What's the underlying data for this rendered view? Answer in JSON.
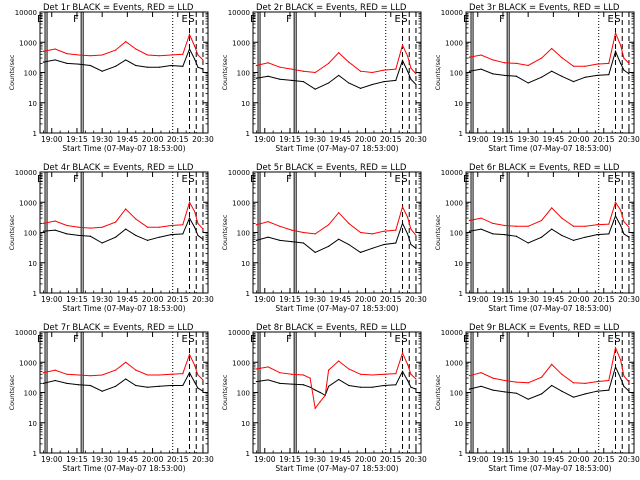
{
  "figure": {
    "xlabel": "Start Time (07-May-07 18:53:00)",
    "ylabel": "Counts/sec",
    "x_tick_labels": [
      "19:00",
      "19:15",
      "19:30",
      "19:45",
      "20:00",
      "20:15",
      "20:30"
    ],
    "y_tick_labels": [
      "1",
      "10",
      "100",
      "1000",
      "10000"
    ],
    "colors": {
      "events": "#000000",
      "lld": "#ff0000",
      "axes": "#000000"
    }
  },
  "chart_data": [
    {
      "type": "line",
      "title": "Det 1r BLACK = Events, RED = LLD",
      "y_scale": "log",
      "ylim": [
        1,
        10000
      ],
      "x": [
        "18:55",
        "19:02",
        "19:09",
        "19:16",
        "19:23",
        "19:30",
        "19:38",
        "19:44",
        "19:50",
        "19:57",
        "20:04",
        "20:11",
        "20:18",
        "20:22",
        "20:25",
        "20:27",
        "20:30"
      ],
      "series": [
        {
          "name": "Events",
          "values": [
            220,
            260,
            200,
            190,
            170,
            110,
            160,
            260,
            170,
            150,
            150,
            170,
            160,
            600,
            280,
            150,
            130
          ]
        },
        {
          "name": "LLD",
          "values": [
            500,
            600,
            420,
            380,
            360,
            380,
            550,
            1050,
            600,
            380,
            360,
            380,
            400,
            1800,
            750,
            380,
            260
          ]
        }
      ],
      "markers": [
        {
          "label": "E",
          "style": "solid"
        },
        {
          "label": "F",
          "style": "solid"
        },
        {
          "label": "",
          "style": "dotted"
        },
        {
          "label": "E",
          "style": "dashed"
        },
        {
          "label": "S",
          "style": "dashed"
        },
        {
          "label": "",
          "style": "dashed"
        }
      ]
    },
    {
      "type": "line",
      "title": "Det 2r BLACK = Events, RED = LLD",
      "y_scale": "log",
      "ylim": [
        1,
        10000
      ],
      "x": [
        "18:55",
        "19:02",
        "19:09",
        "19:16",
        "19:23",
        "19:30",
        "19:38",
        "19:44",
        "19:50",
        "19:57",
        "20:04",
        "20:11",
        "20:18",
        "20:22",
        "20:25",
        "20:27",
        "20:30"
      ],
      "series": [
        {
          "name": "Events",
          "values": [
            65,
            75,
            60,
            55,
            50,
            28,
            45,
            80,
            45,
            30,
            40,
            50,
            55,
            250,
            110,
            60,
            40
          ]
        },
        {
          "name": "LLD",
          "values": [
            170,
            210,
            150,
            130,
            110,
            100,
            200,
            450,
            220,
            110,
            100,
            120,
            130,
            800,
            350,
            140,
            90
          ]
        }
      ],
      "markers": [
        {
          "label": "E",
          "style": "solid"
        },
        {
          "label": "F",
          "style": "solid"
        },
        {
          "label": "",
          "style": "dotted"
        },
        {
          "label": "E",
          "style": "dashed"
        },
        {
          "label": "S",
          "style": "dashed"
        },
        {
          "label": "",
          "style": "dashed"
        }
      ]
    },
    {
      "type": "line",
      "title": "Det 3r BLACK = Events, RED = LLD",
      "y_scale": "log",
      "ylim": [
        1,
        10000
      ],
      "x": [
        "18:55",
        "19:02",
        "19:09",
        "19:16",
        "19:23",
        "19:30",
        "19:38",
        "19:44",
        "19:50",
        "19:57",
        "20:04",
        "20:11",
        "20:18",
        "20:22",
        "20:25",
        "20:27",
        "20:30"
      ],
      "series": [
        {
          "name": "Events",
          "values": [
            110,
            130,
            90,
            80,
            75,
            45,
            70,
            110,
            75,
            50,
            70,
            80,
            85,
            500,
            200,
            120,
            90
          ]
        },
        {
          "name": "LLD",
          "values": [
            320,
            380,
            260,
            210,
            200,
            170,
            300,
            620,
            310,
            160,
            160,
            190,
            200,
            2000,
            800,
            300,
            200
          ]
        }
      ],
      "markers": [
        {
          "label": "E",
          "style": "solid"
        },
        {
          "label": "F",
          "style": "solid"
        },
        {
          "label": "",
          "style": "dotted"
        },
        {
          "label": "E",
          "style": "dashed"
        },
        {
          "label": "S",
          "style": "dashed"
        },
        {
          "label": "",
          "style": "dashed"
        }
      ]
    },
    {
      "type": "line",
      "title": "Det 4r BLACK = Events, RED = LLD",
      "y_scale": "log",
      "ylim": [
        1,
        10000
      ],
      "x": [
        "18:55",
        "19:02",
        "19:09",
        "19:16",
        "19:23",
        "19:30",
        "19:38",
        "19:44",
        "19:50",
        "19:57",
        "20:04",
        "20:11",
        "20:18",
        "20:22",
        "20:25",
        "20:27",
        "20:30"
      ],
      "series": [
        {
          "name": "Events",
          "values": [
            110,
            120,
            90,
            80,
            75,
            45,
            70,
            130,
            80,
            55,
            70,
            85,
            90,
            300,
            150,
            80,
            60
          ]
        },
        {
          "name": "LLD",
          "values": [
            200,
            240,
            170,
            150,
            140,
            150,
            220,
            600,
            280,
            150,
            150,
            170,
            180,
            1000,
            500,
            200,
            130
          ]
        }
      ],
      "markers": [
        {
          "label": "E",
          "style": "solid"
        },
        {
          "label": "F",
          "style": "solid"
        },
        {
          "label": "",
          "style": "dotted"
        },
        {
          "label": "E",
          "style": "dashed"
        },
        {
          "label": "S",
          "style": "dashed"
        },
        {
          "label": "",
          "style": "dashed"
        }
      ]
    },
    {
      "type": "line",
      "title": "Det 5r BLACK = Events, RED = LLD",
      "y_scale": "log",
      "ylim": [
        1,
        10000
      ],
      "x": [
        "18:55",
        "19:02",
        "19:09",
        "19:16",
        "19:23",
        "19:30",
        "19:38",
        "19:44",
        "19:50",
        "19:57",
        "20:04",
        "20:11",
        "20:18",
        "20:22",
        "20:25",
        "20:27",
        "20:30"
      ],
      "series": [
        {
          "name": "Events",
          "values": [
            55,
            70,
            55,
            50,
            45,
            22,
            35,
            60,
            40,
            22,
            30,
            40,
            45,
            200,
            90,
            40,
            30
          ]
        },
        {
          "name": "LLD",
          "values": [
            180,
            230,
            160,
            120,
            100,
            90,
            180,
            450,
            200,
            100,
            90,
            110,
            120,
            700,
            320,
            130,
            80
          ]
        }
      ],
      "markers": [
        {
          "label": "E",
          "style": "solid"
        },
        {
          "label": "F",
          "style": "solid"
        },
        {
          "label": "",
          "style": "dotted"
        },
        {
          "label": "E",
          "style": "dashed"
        },
        {
          "label": "S",
          "style": "dashed"
        },
        {
          "label": "",
          "style": "dashed"
        }
      ]
    },
    {
      "type": "line",
      "title": "Det 6r BLACK = Events, RED = LLD",
      "y_scale": "log",
      "ylim": [
        1,
        10000
      ],
      "x": [
        "18:55",
        "19:02",
        "19:09",
        "19:16",
        "19:23",
        "19:30",
        "19:38",
        "19:44",
        "19:50",
        "19:57",
        "20:04",
        "20:11",
        "20:18",
        "20:22",
        "20:25",
        "20:27",
        "20:30"
      ],
      "series": [
        {
          "name": "Events",
          "values": [
            110,
            130,
            90,
            85,
            75,
            45,
            70,
            130,
            80,
            55,
            70,
            85,
            90,
            350,
            170,
            90,
            70
          ]
        },
        {
          "name": "LLD",
          "values": [
            250,
            300,
            200,
            170,
            160,
            160,
            250,
            650,
            300,
            160,
            160,
            180,
            190,
            1000,
            550,
            230,
            150
          ]
        }
      ],
      "markers": [
        {
          "label": "E",
          "style": "solid"
        },
        {
          "label": "F",
          "style": "solid"
        },
        {
          "label": "",
          "style": "dotted"
        },
        {
          "label": "E",
          "style": "dashed"
        },
        {
          "label": "S",
          "style": "dashed"
        },
        {
          "label": "",
          "style": "dashed"
        }
      ]
    },
    {
      "type": "line",
      "title": "Det 7r BLACK = Events, RED = LLD",
      "y_scale": "log",
      "ylim": [
        1,
        10000
      ],
      "x": [
        "18:55",
        "19:02",
        "19:09",
        "19:16",
        "19:23",
        "19:30",
        "19:38",
        "19:44",
        "19:50",
        "19:57",
        "20:04",
        "20:11",
        "20:18",
        "20:22",
        "20:25",
        "20:27",
        "20:30"
      ],
      "series": [
        {
          "name": "Events",
          "values": [
            200,
            250,
            200,
            180,
            170,
            110,
            160,
            280,
            170,
            150,
            160,
            170,
            170,
            450,
            220,
            140,
            110
          ]
        },
        {
          "name": "LLD",
          "values": [
            450,
            550,
            400,
            380,
            360,
            380,
            550,
            1000,
            550,
            380,
            380,
            400,
            420,
            1800,
            800,
            380,
            260
          ]
        }
      ],
      "markers": [
        {
          "label": "E",
          "style": "solid"
        },
        {
          "label": "F",
          "style": "solid"
        },
        {
          "label": "",
          "style": "dotted"
        },
        {
          "label": "E",
          "style": "dashed"
        },
        {
          "label": "S",
          "style": "dashed"
        },
        {
          "label": "",
          "style": "dashed"
        }
      ]
    },
    {
      "type": "line",
      "title": "Det 8r BLACK = Events, RED = LLD",
      "y_scale": "log",
      "ylim": [
        1,
        10000
      ],
      "x": [
        "18:55",
        "19:02",
        "19:09",
        "19:16",
        "19:23",
        "19:27",
        "19:30",
        "19:33",
        "19:36",
        "19:38",
        "19:44",
        "19:50",
        "19:57",
        "20:04",
        "20:11",
        "20:18",
        "20:22",
        "20:25",
        "20:27",
        "20:30"
      ],
      "series": [
        {
          "name": "Events",
          "values": [
            230,
            260,
            200,
            190,
            180,
            150,
            120,
            100,
            80,
            160,
            270,
            170,
            150,
            150,
            170,
            180,
            500,
            250,
            150,
            130
          ]
        },
        {
          "name": "LLD",
          "values": [
            600,
            700,
            450,
            400,
            380,
            300,
            30,
            50,
            80,
            550,
            1100,
            600,
            400,
            380,
            400,
            420,
            2000,
            850,
            400,
            280
          ]
        }
      ],
      "markers": [
        {
          "label": "E",
          "style": "solid"
        },
        {
          "label": "F",
          "style": "solid"
        },
        {
          "label": "",
          "style": "dotted"
        },
        {
          "label": "E",
          "style": "dashed"
        },
        {
          "label": "S",
          "style": "dashed"
        },
        {
          "label": "",
          "style": "dashed"
        }
      ]
    },
    {
      "type": "line",
      "title": "Det 9r BLACK = Events, RED = LLD",
      "y_scale": "log",
      "ylim": [
        1,
        10000
      ],
      "x": [
        "18:55",
        "19:02",
        "19:09",
        "19:16",
        "19:23",
        "19:30",
        "19:38",
        "19:44",
        "19:50",
        "19:57",
        "20:04",
        "20:11",
        "20:18",
        "20:22",
        "20:25",
        "20:27",
        "20:30"
      ],
      "series": [
        {
          "name": "Events",
          "values": [
            130,
            160,
            120,
            105,
            95,
            60,
            90,
            170,
            110,
            70,
            90,
            110,
            120,
            700,
            300,
            160,
            110
          ]
        },
        {
          "name": "LLD",
          "values": [
            360,
            450,
            300,
            250,
            220,
            210,
            320,
            850,
            400,
            210,
            200,
            230,
            250,
            3000,
            1200,
            350,
            220
          ]
        }
      ],
      "markers": [
        {
          "label": "E",
          "style": "solid"
        },
        {
          "label": "F",
          "style": "solid"
        },
        {
          "label": "",
          "style": "dotted"
        },
        {
          "label": "E",
          "style": "dashed"
        },
        {
          "label": "S",
          "style": "dashed"
        },
        {
          "label": "",
          "style": "dashed"
        }
      ]
    }
  ]
}
